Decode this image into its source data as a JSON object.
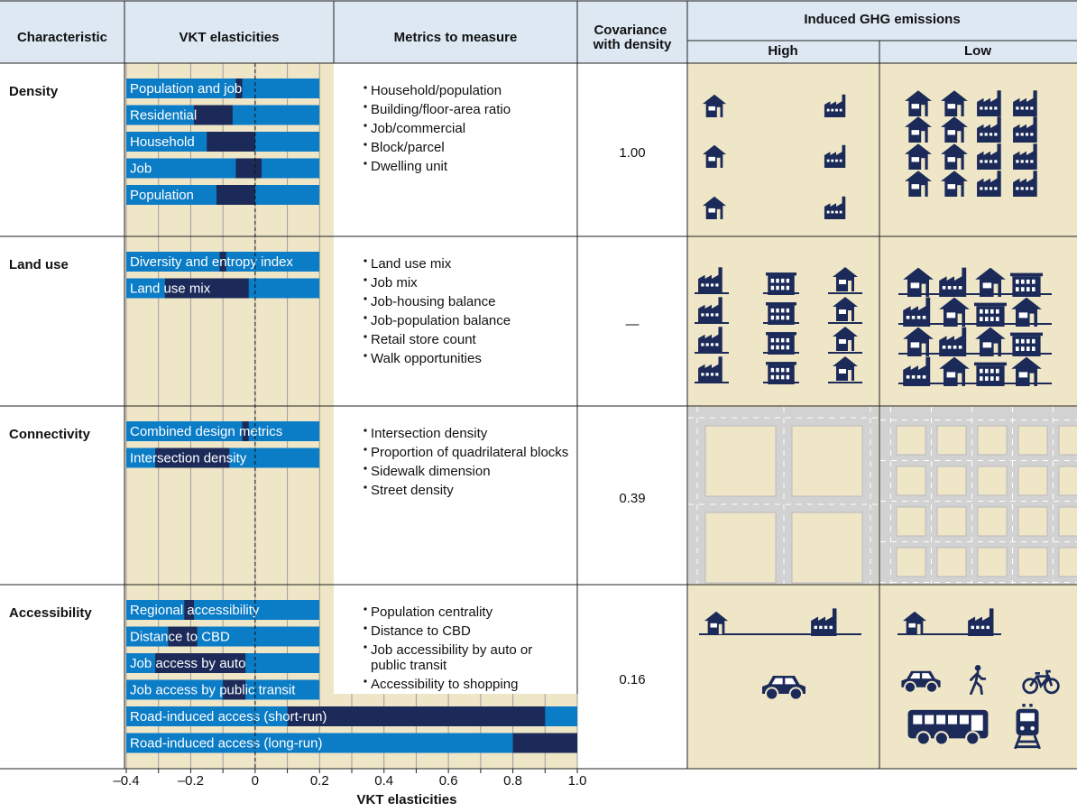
{
  "header": {
    "characteristic": "Characteristic",
    "vkt": "VKT elasticities",
    "metrics": "Metrics to measure",
    "covariance": "Covariance with density",
    "ghg": "Induced GHG emissions",
    "high": "High",
    "low": "Low"
  },
  "rows": [
    {
      "characteristic": "Density",
      "metrics": [
        "Household/population",
        "Building/floor-area ratio",
        "Job/commercial",
        "Block/parcel",
        "Dwelling unit"
      ],
      "covariance": "1.00"
    },
    {
      "characteristic": "Land use",
      "metrics": [
        "Land use mix",
        "Job mix",
        "Job-housing balance",
        "Job-population balance",
        "Retail store count",
        "Walk opportunities"
      ],
      "covariance": "—"
    },
    {
      "characteristic": "Connectivity",
      "metrics": [
        "Intersection density",
        "Proportion of quadrilateral blocks",
        "Sidewalk dimension",
        "Street density"
      ],
      "covariance": "0.39"
    },
    {
      "characteristic": "Accessibility",
      "metrics": [
        "Population centrality",
        "Distance to CBD",
        "Job accessibility by auto or public transit",
        "Accessibility to shopping"
      ],
      "covariance": "0.16"
    }
  ],
  "chart_data": {
    "type": "range-bar",
    "x_label": "VKT elasticities",
    "xlim": [
      -0.4,
      1.0
    ],
    "xticks": [
      {
        "value": -0.4,
        "label": "–0.4"
      },
      {
        "value": -0.2,
        "label": "–0.2"
      },
      0,
      0.2,
      0.4,
      0.6,
      0.8,
      {
        "value": 1.0,
        "label": "1.0"
      }
    ],
    "xminorticks": [
      -0.3,
      -0.1,
      0.1,
      0.3,
      0.5,
      0.7,
      0.9
    ],
    "color": "#0b7cc6",
    "range_color": "#1b2a58",
    "groups": [
      {
        "categories": [
          "Population and job",
          "Residential",
          "Household",
          "Job",
          "Population"
        ],
        "low": [
          -0.06,
          -0.19,
          -0.15,
          -0.06,
          -0.12
        ],
        "high": [
          -0.04,
          -0.07,
          0.0,
          0.02,
          0.0
        ]
      },
      {
        "categories": [
          "Diversity and entropy index",
          "Land use mix"
        ],
        "low": [
          -0.11,
          -0.28
        ],
        "high": [
          -0.09,
          -0.02
        ]
      },
      {
        "categories": [
          "Combined design metrics",
          "Intersection density"
        ],
        "low": [
          -0.04,
          -0.31
        ],
        "high": [
          -0.02,
          -0.08
        ]
      },
      {
        "categories": [
          "Regional accessibility",
          "Distance to CBD",
          "Job access by auto",
          "Job access by public transit",
          "Road-induced access (short-run)",
          "Road-induced access (long-run)"
        ],
        "low": [
          -0.22,
          -0.27,
          -0.31,
          -0.1,
          0.1,
          0.8
        ],
        "high": [
          -0.19,
          -0.18,
          -0.03,
          -0.03,
          0.9,
          1.0
        ]
      }
    ]
  }
}
